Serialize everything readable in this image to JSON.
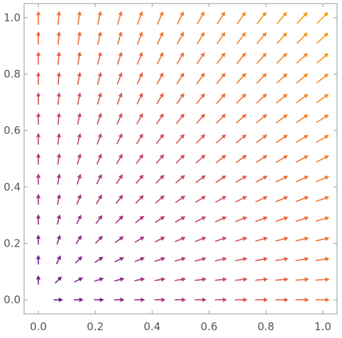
{
  "chart_data": {
    "type": "vector_field",
    "title": "",
    "xlabel": "",
    "ylabel": "",
    "xlim": [
      -0.05,
      1.05
    ],
    "ylim": [
      -0.05,
      1.05
    ],
    "x_ticks": [
      "0.0",
      "0.2",
      "0.4",
      "0.6",
      "0.8",
      "1.0"
    ],
    "y_ticks": [
      "0.0",
      "0.2",
      "0.4",
      "0.6",
      "0.8",
      "1.0"
    ],
    "grid": false,
    "field": {
      "x_range": [
        0.0,
        1.0
      ],
      "y_range": [
        0.0,
        1.0
      ],
      "grid_n": 15,
      "direction_rule": "angle = atan2(y, x)",
      "color_by": "magnitude"
    },
    "color_scale": [
      "#5a1e96",
      "#b2397c",
      "#ef6a3a",
      "#f7a010"
    ]
  }
}
